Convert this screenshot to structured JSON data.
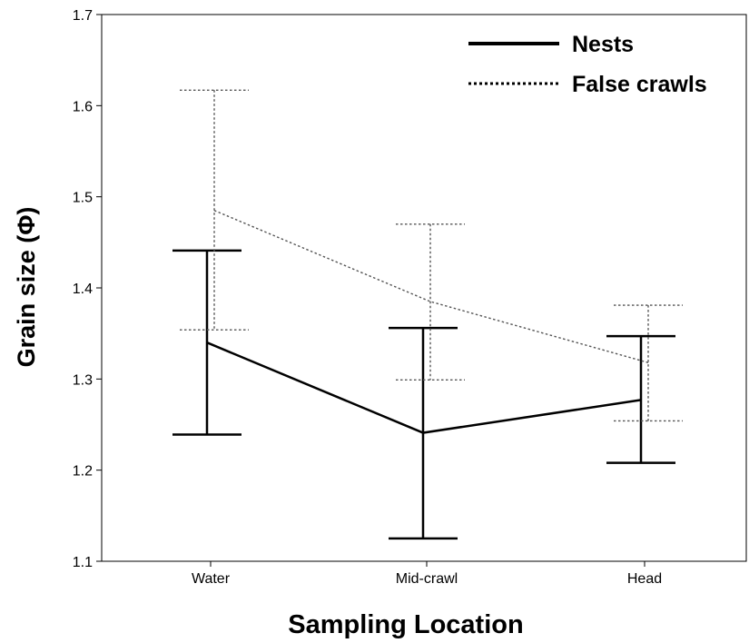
{
  "chart_data": {
    "type": "line",
    "title": "",
    "xlabel": "Sampling Location",
    "ylabel": "Grain size (Φ)",
    "categories": [
      "Water",
      "Mid-crawl",
      "Head"
    ],
    "ylim": [
      1.1,
      1.7
    ],
    "yticks": [
      "1.1",
      "1.2",
      "1.3",
      "1.4",
      "1.5",
      "1.6",
      "1.7"
    ],
    "grid": false,
    "legend_position": "top-right",
    "series": [
      {
        "name": "Nests",
        "line_style": "solid",
        "color": "#000000",
        "values": [
          1.34,
          1.241,
          1.277
        ],
        "error_low": [
          1.239,
          1.125,
          1.208
        ],
        "error_high": [
          1.441,
          1.356,
          1.347
        ]
      },
      {
        "name": "False crawls",
        "line_style": "dotted",
        "color": "#555555",
        "values": [
          1.485,
          1.385,
          1.318
        ],
        "error_low": [
          1.354,
          1.299,
          1.254
        ],
        "error_high": [
          1.617,
          1.47,
          1.381
        ]
      }
    ]
  }
}
